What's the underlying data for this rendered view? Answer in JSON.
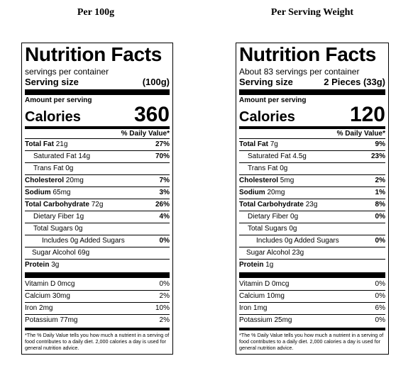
{
  "headings": {
    "left": "Per 100g",
    "right": "Per Serving Weight"
  },
  "labels": [
    {
      "title": "Nutrition Facts",
      "servings": "servings per container",
      "serving_size_label": "Serving size",
      "serving_size_value": "(100g)",
      "amount_per_serving": "Amount per serving",
      "calories_label": "Calories",
      "calories_value": "360",
      "dv_header": "% Daily Value*",
      "total_fat": {
        "label": "Total Fat",
        "amount": "21g",
        "pct": "27%"
      },
      "sat_fat": {
        "label": "Saturated Fat 14g",
        "pct": "70%"
      },
      "trans_fat": {
        "label": "Trans Fat 0g"
      },
      "cholesterol": {
        "label": "Cholesterol",
        "amount": "20mg",
        "pct": "7%"
      },
      "sodium": {
        "label": "Sodium",
        "amount": "65mg",
        "pct": "3%"
      },
      "total_carb": {
        "label": "Total Carbohydrate",
        "amount": "72g",
        "pct": "26%"
      },
      "fiber": {
        "label": "Dietary Fiber 1g",
        "pct": "4%"
      },
      "total_sugars": {
        "label": "Total Sugars 0g"
      },
      "added_sugars": {
        "label": "Includes 0g Added Sugars",
        "pct": "0%"
      },
      "sugar_alcohol": {
        "label": "Sugar Alcohol 69g"
      },
      "protein": {
        "label": "Protein",
        "amount": "3g"
      },
      "vitamin_d": {
        "label": "Vitamin D 0mcg",
        "pct": "0%"
      },
      "calcium": {
        "label": "Calcium 30mg",
        "pct": "2%"
      },
      "iron": {
        "label": "Iron 2mg",
        "pct": "10%"
      },
      "potassium": {
        "label": "Potassium 77mg",
        "pct": "2%"
      },
      "footnote": "*The % Daily Value tells you how much a nutrient in a serving of food contributes to a daily diet. 2,000 calories a day is used for general nutrition advice."
    },
    {
      "title": "Nutrition Facts",
      "servings": "About 83 servings per container",
      "serving_size_label": "Serving size",
      "serving_size_value": "2 Pieces (33g)",
      "amount_per_serving": "Amount per serving",
      "calories_label": "Calories",
      "calories_value": "120",
      "dv_header": "% Daily Value*",
      "total_fat": {
        "label": "Total Fat",
        "amount": "7g",
        "pct": "9%"
      },
      "sat_fat": {
        "label": "Saturated Fat 4.5g",
        "pct": "23%"
      },
      "trans_fat": {
        "label": "Trans Fat 0g"
      },
      "cholesterol": {
        "label": "Cholesterol",
        "amount": "5mg",
        "pct": "2%"
      },
      "sodium": {
        "label": "Sodium",
        "amount": "20mg",
        "pct": "1%"
      },
      "total_carb": {
        "label": "Total Carbohydrate",
        "amount": "23g",
        "pct": "8%"
      },
      "fiber": {
        "label": "Dietary Fiber 0g",
        "pct": "0%"
      },
      "total_sugars": {
        "label": "Total Sugars 0g"
      },
      "added_sugars": {
        "label": "Includes 0g Added Sugars",
        "pct": "0%"
      },
      "sugar_alcohol": {
        "label": "Sugar Alcohol 23g"
      },
      "protein": {
        "label": "Protein",
        "amount": "1g"
      },
      "vitamin_d": {
        "label": "Vitamin D 0mcg",
        "pct": "0%"
      },
      "calcium": {
        "label": "Calcium 10mg",
        "pct": "0%"
      },
      "iron": {
        "label": "Iron 1mg",
        "pct": "6%"
      },
      "potassium": {
        "label": "Potassium 25mg",
        "pct": "0%"
      },
      "footnote": "*The % Daily Value tells you how much a nutrient in a serving of food contributes to a daily diet. 2,000 calories a day is used for general nutrition advice."
    }
  ]
}
